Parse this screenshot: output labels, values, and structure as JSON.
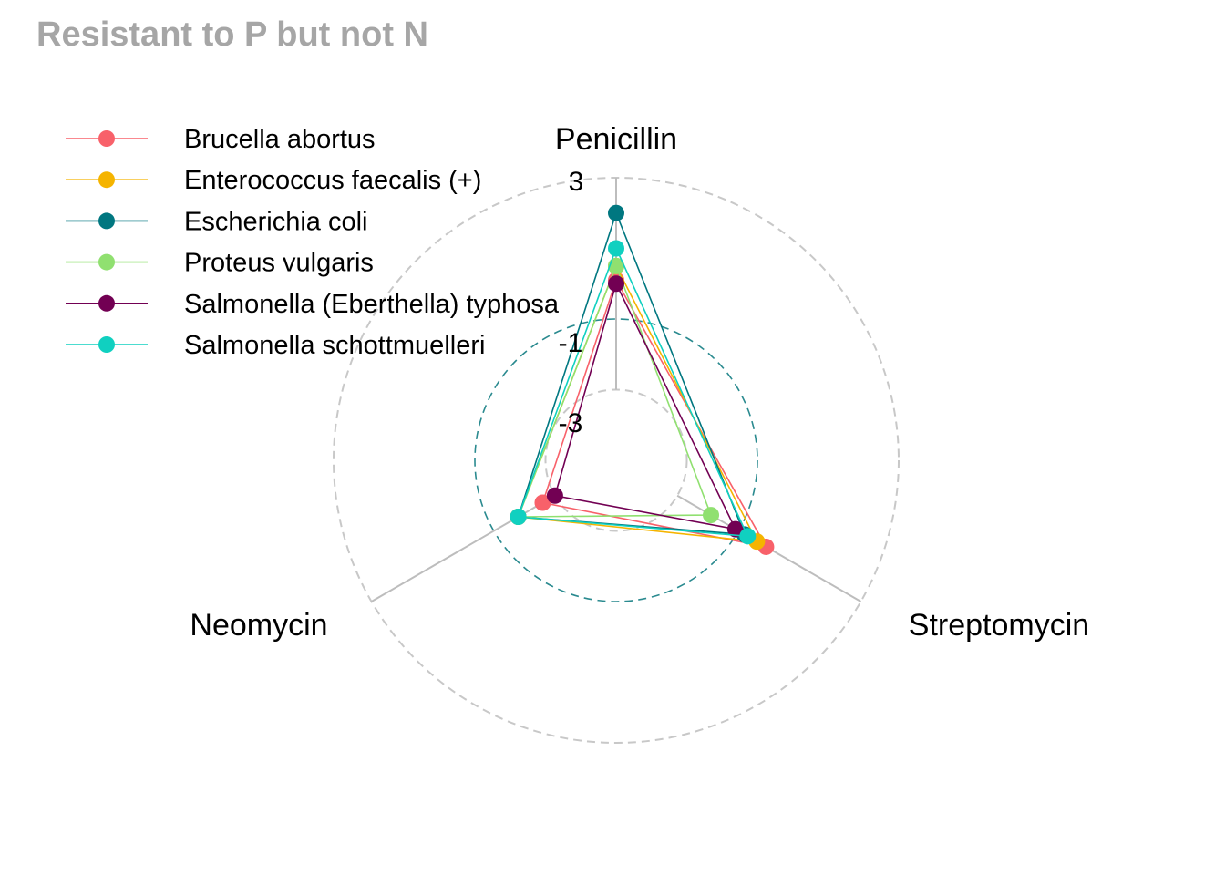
{
  "chart_data": {
    "type": "radar",
    "title": "Resistant to P but not N",
    "axes": [
      "Penicillin",
      "Streptomycin",
      "Neomycin"
    ],
    "scale": {
      "min": -5,
      "max": 3,
      "grid_values": [
        -3,
        -1,
        3
      ],
      "grid_labels": [
        "-3",
        "-1",
        "3"
      ],
      "centre_line": -1
    },
    "legend_position": "top-left",
    "grid": "dashed circles",
    "series": [
      {
        "name": "Brucella abortus",
        "color": "#F8616A",
        "values": [
          0.1,
          -0.1,
          -2.6
        ]
      },
      {
        "name": "Enterococcus faecalis (+)",
        "color": "#F5B400",
        "values": [
          0.5,
          -0.4,
          -1.8
        ]
      },
      {
        "name": "Escherichia coli",
        "color": "#007780",
        "values": [
          2.0,
          -0.8,
          -1.8
        ]
      },
      {
        "name": "Proteus vulgaris",
        "color": "#90E070",
        "values": [
          0.5,
          -1.9,
          -1.8
        ]
      },
      {
        "name": "Salmonella (Eberthella) typhosa",
        "color": "#720053",
        "values": [
          0.0,
          -1.1,
          -3.0
        ]
      },
      {
        "name": "Salmonella schottmuelleri",
        "color": "#10D0C0",
        "values": [
          1.0,
          -0.7,
          -1.8
        ]
      }
    ]
  }
}
